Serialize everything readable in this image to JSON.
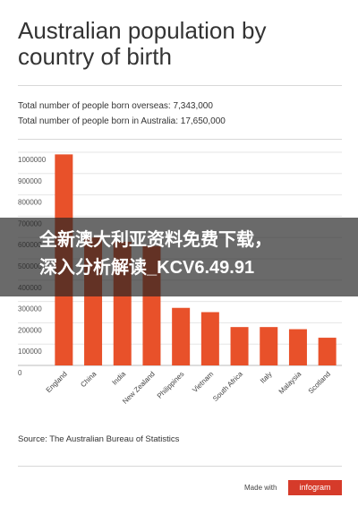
{
  "title": "Australian population by country of birth",
  "stats": [
    "Total number of people born overseas: 7,343,000",
    "Total number of people born in Australia: 17,650,000"
  ],
  "source": "Source: The Australian Bureau of Statistics",
  "footer": {
    "made_with": "Made with",
    "brand": "infogram"
  },
  "overlay": {
    "line1": "全新澳大利亚资料免费下载，",
    "line2": "深入分析解读_KCV6.49.91"
  },
  "colors": {
    "bar": "#e8512a",
    "grid": "#e6e6e6",
    "text": "#333333"
  },
  "chart_data": {
    "type": "bar",
    "categories": [
      "England",
      "China",
      "India",
      "New Zealand",
      "Philippines",
      "Vietnam",
      "South Africa",
      "Italy",
      "Malaysia",
      "Scotland"
    ],
    "values": [
      990000,
      600000,
      580000,
      560000,
      270000,
      250000,
      180000,
      180000,
      170000,
      130000
    ],
    "yticks": [
      "0",
      "100000",
      "200000",
      "300000",
      "400000",
      "500000",
      "600000",
      "700000",
      "800000",
      "900000",
      "1000000"
    ],
    "ylim": [
      0,
      1000000
    ],
    "grid": true
  }
}
